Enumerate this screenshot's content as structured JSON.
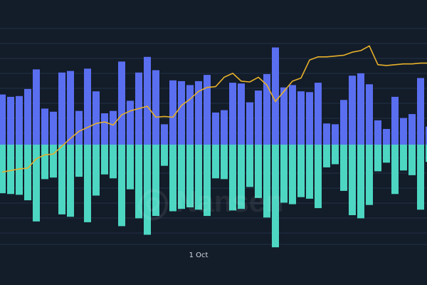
{
  "chart_data": {
    "type": "bar",
    "description_of_axes": "",
    "x_tick_labels": [
      "1 Oct"
    ],
    "x_tick_index": 23,
    "ylim": [
      -1.3,
      1.2
    ],
    "grid": true,
    "legend": "none",
    "colors": {
      "background": "#131c29",
      "inflow": "#5a6ef0",
      "outflow": "#4dd6c2",
      "line": "#e6b02a",
      "grid": "#223246"
    },
    "series": [
      {
        "role": "positive-bars",
        "values": [
          0.64,
          0.61,
          0.62,
          0.71,
          0.96,
          0.46,
          0.42,
          0.92,
          0.94,
          0.43,
          0.97,
          0.68,
          0.4,
          0.43,
          1.06,
          0.56,
          0.92,
          1.12,
          0.95,
          0.26,
          0.82,
          0.81,
          0.76,
          0.81,
          0.89,
          0.41,
          0.44,
          0.79,
          0.78,
          0.54,
          0.69,
          0.9,
          1.24,
          0.73,
          0.76,
          0.68,
          0.67,
          0.79,
          0.27,
          0.26,
          0.57,
          0.88,
          0.91,
          0.77,
          0.31,
          0.2,
          0.61,
          0.34,
          0.39,
          0.85,
          0.23
        ]
      },
      {
        "role": "negative-bars",
        "values": [
          -0.62,
          -0.63,
          -0.64,
          -0.71,
          -0.98,
          -0.44,
          -0.42,
          -0.89,
          -0.92,
          -0.41,
          -0.99,
          -0.65,
          -0.38,
          -0.43,
          -1.04,
          -0.57,
          -0.94,
          -1.15,
          -0.91,
          -0.27,
          -0.85,
          -0.82,
          -0.8,
          -0.83,
          -0.91,
          -0.43,
          -0.44,
          -0.84,
          -0.82,
          -0.54,
          -0.68,
          -0.93,
          -1.31,
          -0.74,
          -0.76,
          -0.67,
          -0.69,
          -0.81,
          -0.29,
          -0.25,
          -0.59,
          -0.9,
          -0.94,
          -0.77,
          -0.34,
          -0.23,
          -0.63,
          -0.33,
          -0.39,
          -0.83,
          -0.22
        ]
      },
      {
        "role": "line",
        "values": [
          -0.35,
          -0.33,
          -0.31,
          -0.3,
          -0.18,
          -0.13,
          -0.12,
          -0.02,
          0.08,
          0.17,
          0.22,
          0.27,
          0.29,
          0.25,
          0.38,
          0.43,
          0.46,
          0.49,
          0.35,
          0.36,
          0.35,
          0.5,
          0.58,
          0.68,
          0.73,
          0.74,
          0.86,
          0.91,
          0.81,
          0.8,
          0.86,
          0.76,
          0.55,
          0.68,
          0.81,
          0.85,
          1.08,
          1.12,
          1.12,
          1.13,
          1.14,
          1.18,
          1.2,
          1.26,
          1.02,
          1.01,
          1.02,
          1.03,
          1.03,
          1.04,
          1.04
        ]
      }
    ]
  },
  "watermark": {
    "text": "Nansen"
  }
}
